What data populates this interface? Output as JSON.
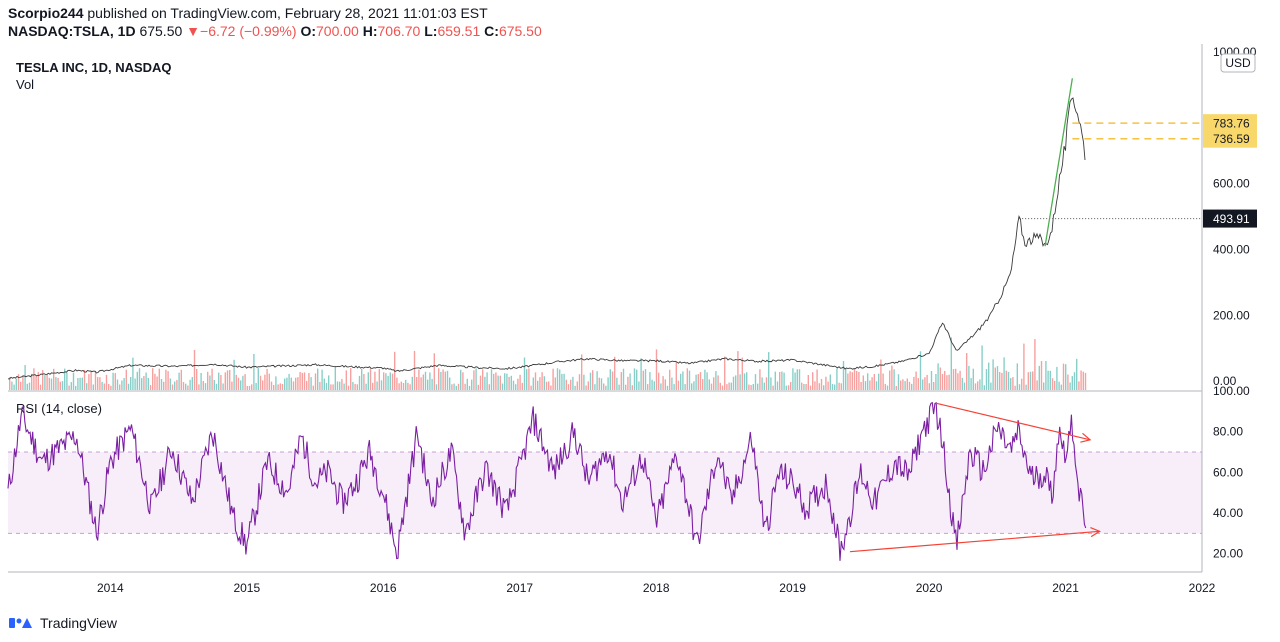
{
  "header": {
    "author": "Scorpio244",
    "published_text": "published on TradingView.com, February 28, 2021 11:01:03 EST",
    "symbol": "NASDAQ:TSLA, 1D",
    "last": "675.50",
    "change": "−6.72 (−0.99%)",
    "o_label": "O:",
    "o_value": "700.00",
    "h_label": "H:",
    "h_value": "706.70",
    "l_label": "L:",
    "l_value": "659.51",
    "c_label": "C:",
    "c_value": "675.50"
  },
  "footer": {
    "brand": "TradingView"
  },
  "chart_data": [
    {
      "type": "line",
      "title": "TESLA INC, 1D, NASDAQ",
      "subtitle": "Vol",
      "currency": "USD",
      "y_ticks": [
        "1000.00",
        "600.00",
        "400.00",
        "200.00",
        "0.00"
      ],
      "ylim": [
        -30,
        1000
      ],
      "x_ticks": [
        "2014",
        "2015",
        "2016",
        "2017",
        "2018",
        "2019",
        "2020",
        "2021",
        "2022"
      ],
      "x_tick_years": [
        2014,
        2015,
        2016,
        2017,
        2018,
        2019,
        2020,
        2021,
        2022
      ],
      "xlim": [
        2013.25,
        2022.0
      ],
      "series": [
        {
          "points": [
            [
              2013.25,
              8
            ],
            [
              2013.5,
              20
            ],
            [
              2013.75,
              33
            ],
            [
              2013.9,
              27
            ],
            [
              2014.15,
              48
            ],
            [
              2014.5,
              45
            ],
            [
              2014.75,
              52
            ],
            [
              2015.0,
              42
            ],
            [
              2015.5,
              50
            ],
            [
              2015.75,
              44
            ],
            [
              2016.0,
              40
            ],
            [
              2016.1,
              30
            ],
            [
              2016.4,
              48
            ],
            [
              2016.7,
              41
            ],
            [
              2016.9,
              38
            ],
            [
              2017.0,
              42
            ],
            [
              2017.3,
              60
            ],
            [
              2017.5,
              68
            ],
            [
              2017.75,
              62
            ],
            [
              2018.0,
              62
            ],
            [
              2018.25,
              54
            ],
            [
              2018.5,
              68
            ],
            [
              2018.75,
              60
            ],
            [
              2019.0,
              64
            ],
            [
              2019.25,
              48
            ],
            [
              2019.4,
              38
            ],
            [
              2019.6,
              45
            ],
            [
              2019.8,
              60
            ],
            [
              2020.0,
              84
            ],
            [
              2020.1,
              180
            ],
            [
              2020.2,
              90
            ],
            [
              2020.35,
              150
            ],
            [
              2020.45,
              200
            ],
            [
              2020.55,
              280
            ],
            [
              2020.6,
              330
            ],
            [
              2020.66,
              498
            ],
            [
              2020.7,
              420
            ],
            [
              2020.8,
              440
            ],
            [
              2020.85,
              410
            ],
            [
              2020.9,
              460
            ],
            [
              2020.95,
              600
            ],
            [
              2021.0,
              720
            ],
            [
              2021.05,
              880
            ],
            [
              2021.1,
              800
            ],
            [
              2021.15,
              675.5
            ]
          ]
        }
      ],
      "price_labels": [
        {
          "text": "783.76",
          "value": 783.76,
          "color": "#f9d86b",
          "style": "dashed"
        },
        {
          "text": "736.59",
          "value": 736.59,
          "color": "#f9d86b",
          "style": "dashed"
        },
        {
          "text": "493.91",
          "value": 493.91,
          "color": "#131722",
          "style": "dotted"
        }
      ],
      "trendlines": [
        {
          "from": [
            2020.85,
            410
          ],
          "to": [
            2021.05,
            920
          ],
          "color": "#4caf50"
        }
      ],
      "volume_max_value": 100
    },
    {
      "type": "line",
      "title": "RSI (14, close)",
      "y_ticks": [
        "100.00",
        "80.00",
        "60.00",
        "40.00",
        "20.00"
      ],
      "ylim": [
        11,
        100
      ],
      "xlim": [
        2013.25,
        2022.0
      ],
      "band": [
        30,
        70
      ],
      "series": [
        {
          "points": [
            [
              2013.25,
              50
            ],
            [
              2013.35,
              88
            ],
            [
              2013.5,
              65
            ],
            [
              2013.75,
              78
            ],
            [
              2013.9,
              30
            ],
            [
              2014.0,
              65
            ],
            [
              2014.15,
              82
            ],
            [
              2014.3,
              42
            ],
            [
              2014.45,
              72
            ],
            [
              2014.6,
              45
            ],
            [
              2014.75,
              80
            ],
            [
              2014.9,
              38
            ],
            [
              2015.0,
              24
            ],
            [
              2015.15,
              65
            ],
            [
              2015.3,
              50
            ],
            [
              2015.4,
              78
            ],
            [
              2015.5,
              55
            ],
            [
              2015.6,
              60
            ],
            [
              2015.7,
              45
            ],
            [
              2015.8,
              55
            ],
            [
              2015.9,
              70
            ],
            [
              2016.0,
              50
            ],
            [
              2016.1,
              20
            ],
            [
              2016.25,
              80
            ],
            [
              2016.35,
              45
            ],
            [
              2016.5,
              70
            ],
            [
              2016.6,
              30
            ],
            [
              2016.75,
              62
            ],
            [
              2016.9,
              40
            ],
            [
              2017.0,
              62
            ],
            [
              2017.1,
              86
            ],
            [
              2017.25,
              60
            ],
            [
              2017.4,
              80
            ],
            [
              2017.5,
              55
            ],
            [
              2017.65,
              72
            ],
            [
              2017.75,
              45
            ],
            [
              2017.9,
              68
            ],
            [
              2018.0,
              35
            ],
            [
              2018.15,
              70
            ],
            [
              2018.3,
              24
            ],
            [
              2018.45,
              70
            ],
            [
              2018.55,
              45
            ],
            [
              2018.7,
              77
            ],
            [
              2018.8,
              30
            ],
            [
              2018.9,
              60
            ],
            [
              2019.0,
              55
            ],
            [
              2019.1,
              42
            ],
            [
              2019.25,
              55
            ],
            [
              2019.35,
              21
            ],
            [
              2019.5,
              60
            ],
            [
              2019.6,
              45
            ],
            [
              2019.75,
              65
            ],
            [
              2019.85,
              58
            ],
            [
              2019.95,
              80
            ],
            [
              2020.05,
              92
            ],
            [
              2020.1,
              74
            ],
            [
              2020.2,
              23
            ],
            [
              2020.3,
              70
            ],
            [
              2020.4,
              60
            ],
            [
              2020.5,
              82
            ],
            [
              2020.6,
              70
            ],
            [
              2020.65,
              80
            ],
            [
              2020.75,
              57
            ],
            [
              2020.85,
              60
            ],
            [
              2020.9,
              48
            ],
            [
              2020.95,
              80
            ],
            [
              2021.0,
              70
            ],
            [
              2021.05,
              84
            ],
            [
              2021.1,
              50
            ],
            [
              2021.15,
              33
            ]
          ]
        }
      ],
      "trendlines": [
        {
          "from": [
            2019.42,
            21
          ],
          "to": [
            2021.25,
            31
          ],
          "color": "#f44336"
        },
        {
          "from": [
            2020.05,
            94
          ],
          "to": [
            2021.18,
            76
          ],
          "color": "#f44336"
        }
      ]
    }
  ]
}
